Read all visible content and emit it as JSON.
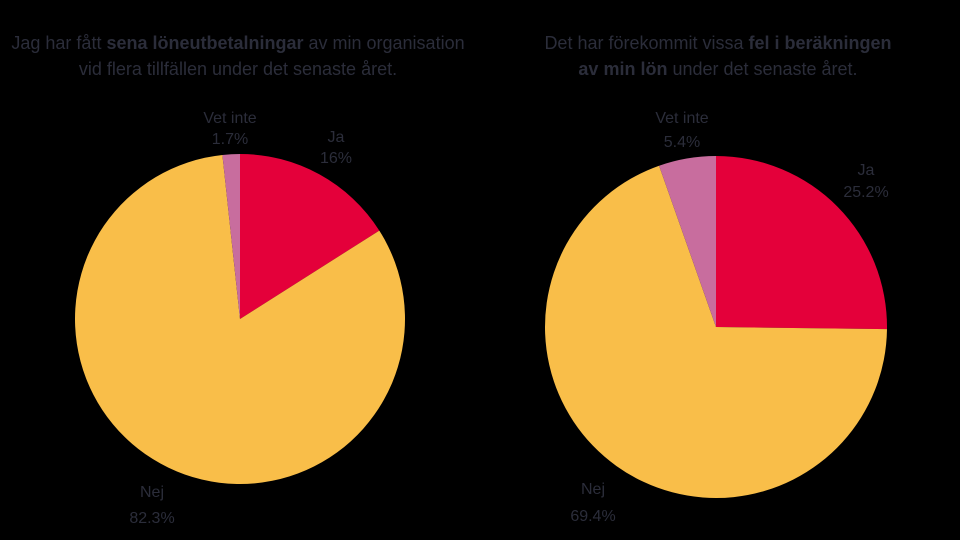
{
  "chart_data": [
    {
      "type": "pie",
      "title": {
        "pre": "Jag har fått ",
        "bold": "sena löneutbetalningar",
        "post_line1": " av min organisation",
        "line2": "vid flera tillfällen under det senaste året."
      },
      "slices": [
        {
          "name": "Ja",
          "value": 16,
          "label": "16%",
          "color": "#e4003a"
        },
        {
          "name": "Nej",
          "value": 82.3,
          "label": "82.3%",
          "color": "#f9be49"
        },
        {
          "name": "Vet inte",
          "value": 1.7,
          "label": "1.7%",
          "color": "#c86d9e"
        }
      ]
    },
    {
      "type": "pie",
      "title": {
        "pre": "Det har förekommit vissa ",
        "bold": "fel i beräkningen",
        "post_line1": "",
        "line2_bold": "av min lön",
        "line2_post": " under det senaste året."
      },
      "slices": [
        {
          "name": "Ja",
          "value": 25.2,
          "label": "25.2%",
          "color": "#e4003a"
        },
        {
          "name": "Nej",
          "value": 69.4,
          "label": "69.4%",
          "color": "#f9be49"
        },
        {
          "name": "Vet inte",
          "value": 5.4,
          "label": "5.4%",
          "color": "#c86d9e"
        }
      ]
    }
  ]
}
